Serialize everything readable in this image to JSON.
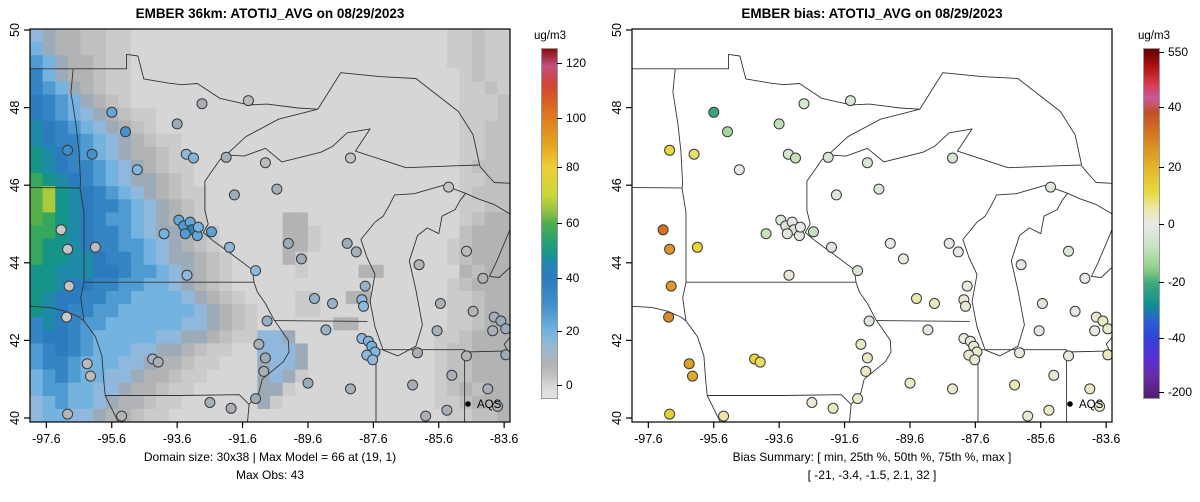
{
  "panels": [
    {
      "id": "model",
      "title": "EMBER 36km: ATOTIJ_AVG on 08/29/2023",
      "caption_lines": [
        "Domain size: 30x38 | Max Model = 66 at (19, 1)",
        "Max Obs: 43"
      ],
      "legend_label": "AQS",
      "colorbar": {
        "label": "ug/m3",
        "ticks": [
          [
            120,
            0.043
          ],
          [
            100,
            0.2
          ],
          [
            80,
            0.34
          ],
          [
            60,
            0.5
          ],
          [
            40,
            0.66
          ],
          [
            20,
            0.81
          ],
          [
            0,
            0.965
          ]
        ]
      },
      "x_tick_labels": [
        "-97.6",
        "-95.6",
        "-93.6",
        "-91.6",
        "-89.6",
        "-87.6",
        "-85.6",
        "-83.6"
      ],
      "y_tick_labels": [
        "50",
        "48",
        "46",
        "44",
        "42",
        "40"
      ]
    },
    {
      "id": "bias",
      "title": "EMBER bias: ATOTIJ_AVG on 08/29/2023",
      "caption_lines": [
        "Bias Summary: [ min, 25th %, 50th %, 75th %, max ]",
        "[ -21,  -3.4,  -1.5,  2.1,  32 ]"
      ],
      "legend_label": "AQS",
      "colorbar": {
        "label": "ug/m3",
        "ticks": [
          [
            550,
            0.012
          ],
          [
            40,
            0.17
          ],
          [
            20,
            0.34
          ],
          [
            0,
            0.505
          ],
          [
            -20,
            0.67
          ],
          [
            -40,
            0.83
          ],
          [
            -200,
            0.985
          ]
        ]
      },
      "x_tick_labels": [
        "-97.6",
        "-95.6",
        "-93.6",
        "-91.6",
        "-89.6",
        "-87.6",
        "-85.6",
        "-83.6"
      ],
      "y_tick_labels": [
        "50",
        "48",
        "46",
        "44",
        "42",
        "40"
      ]
    }
  ],
  "chart_data": {
    "type": [
      "heatmap",
      "scatter"
    ],
    "x_ticks": [
      -97.6,
      -95.6,
      -93.6,
      -91.6,
      -89.6,
      -87.6,
      -85.6,
      -83.6
    ],
    "y_ticks": [
      50,
      48,
      46,
      44,
      42,
      40
    ],
    "lon_range": [
      -98.1,
      -83.4
    ],
    "lat_range": [
      39.9,
      50.1
    ],
    "units": "ug/m3",
    "summary": {
      "domain_size": "30x38",
      "max_model": 66,
      "max_model_at": "(19, 1)",
      "max_obs": 43,
      "bias_min": -21,
      "bias_p25": -3.4,
      "bias_p50": -1.5,
      "bias_p75": 2.1,
      "bias_max": 32
    },
    "model_grid": {
      "nrows": 30,
      "ncols": 38,
      "char_values": {
        ".": 1,
        ",": 4,
        "-": 7,
        "=": 10,
        "g": 14,
        "p": 18,
        "l": 22,
        "b": 28,
        "B": 34,
        "T": 40,
        "d": 46,
        "t": 52,
        "G": 58,
        "e": 63,
        "y": 68
      },
      "rows": [
        "pg==--,,.........................,,-,,",
        "lg==--,,.........................,,-,,",
        "blg==-,,.........................,,-,,",
        "Blg==-,,..........................,-,,",
        "Bblg=-,,..........................,,-,",
        "TBblg=-,..........................,,,-",
        "TBblpg=-,,........................,,,-",
        "dTBblpg=-,........................,,--",
        "dTBBblpg=-,,......................,,--",
        "tdTBblpg==-,......................,,--",
        "tdTBBblpg=-,,.....................,---",
        "GtdTBblpgg=-,.....................,,--",
        "eytdTBblpg=-,,....................,---",
        "eytdTBBblpg=-,....................,,--",
        "eGtdTBbblpg=-,......==............,-==",
        "GGtdTBBblpgg=-,.....==,...........-===",
        "GttdTBBbblpg=-,.....==,..........,-===",
        "GttddTBBblpgg=-,....=,...........,-===",
        "ttdddTTBbblpg=-,.....,....==......=-==",
        "ttdTTBBbbllpg=-,.................,-===",
        "tdTTBBbbllllpg=-,....,,..==......,,-==",
        "tdTBBbbllllllpg=-,...,,..........,,-==",
        "BdTBbbllllllppg=-,......==.......,,-==",
        "BTTBblllllppgg=-,,ppg...........,,-===",
        "bBTBblllppgg=-,,..pppg..........,--===",
        "bBBblllppg==-,,...gppg..........,--===",
        "lbBbllppg==-,,....gpg,..........,--===",
        "lbbllppg==-,,.....gg,...........,-=-==",
        "plbllpg==-,,......g,............,,-===",
        "pllppg==-,,......................,,--=="
      ]
    },
    "stations": {
      "columns": [
        "lon",
        "lat",
        "obs_ugm3",
        "bias_ugm3"
      ],
      "rows": [
        [
          -96.95,
          46.9,
          32,
          12
        ],
        [
          -96.2,
          46.8,
          30,
          9
        ],
        [
          -95.6,
          47.88,
          25,
          -21
        ],
        [
          -95.18,
          47.38,
          30,
          -12
        ],
        [
          -93.6,
          47.58,
          14,
          -9
        ],
        [
          -92.84,
          48.1,
          12,
          -4
        ],
        [
          -91.42,
          48.18,
          8,
          -4
        ],
        [
          -94.82,
          46.4,
          20,
          0
        ],
        [
          -93.32,
          46.8,
          18,
          -5
        ],
        [
          -93.1,
          46.7,
          20,
          -8
        ],
        [
          -92.1,
          46.72,
          12,
          -4
        ],
        [
          -90.9,
          46.58,
          8,
          -3
        ],
        [
          -88.3,
          46.7,
          6,
          -4
        ],
        [
          -85.3,
          45.95,
          6,
          -3
        ],
        [
          -93.55,
          45.1,
          25,
          -3
        ],
        [
          -93.4,
          44.95,
          28,
          -4
        ],
        [
          -93.2,
          45.05,
          25,
          -1
        ],
        [
          -93.15,
          44.85,
          43,
          -4
        ],
        [
          -93.35,
          44.75,
          28,
          -2
        ],
        [
          -92.98,
          44.7,
          25,
          -1
        ],
        [
          -92.95,
          44.92,
          22,
          0
        ],
        [
          -94.0,
          44.75,
          22,
          -8
        ],
        [
          -97.15,
          44.85,
          5,
          32
        ],
        [
          -96.95,
          44.35,
          6,
          26
        ],
        [
          -96.1,
          44.4,
          8,
          12
        ],
        [
          -96.9,
          43.4,
          6,
          25
        ],
        [
          -96.98,
          42.6,
          5,
          28
        ],
        [
          -96.35,
          41.4,
          8,
          24
        ],
        [
          -96.25,
          41.08,
          8,
          22
        ],
        [
          -96.95,
          40.1,
          10,
          14
        ],
        [
          -95.3,
          40.05,
          10,
          6
        ],
        [
          -94.35,
          41.52,
          12,
          12
        ],
        [
          -94.18,
          41.44,
          12,
          10
        ],
        [
          -91.1,
          41.9,
          12,
          4
        ],
        [
          -90.9,
          41.55,
          14,
          4
        ],
        [
          -90.95,
          41.2,
          12,
          4
        ],
        [
          -90.85,
          42.5,
          16,
          -3
        ],
        [
          -93.3,
          43.68,
          18,
          2
        ],
        [
          -92.55,
          44.8,
          26,
          -8
        ],
        [
          -92.0,
          44.4,
          18,
          -2
        ],
        [
          -91.85,
          45.75,
          14,
          -2
        ],
        [
          -90.55,
          45.9,
          12,
          -3
        ],
        [
          -90.2,
          44.5,
          14,
          -1
        ],
        [
          -89.8,
          44.1,
          14,
          1
        ],
        [
          -91.2,
          43.8,
          18,
          -4
        ],
        [
          -89.4,
          43.08,
          16,
          5
        ],
        [
          -88.85,
          42.95,
          16,
          4
        ],
        [
          -87.95,
          43.05,
          18,
          2
        ],
        [
          -87.9,
          42.88,
          18,
          2
        ],
        [
          -87.85,
          43.4,
          16,
          1
        ],
        [
          -88.4,
          44.5,
          14,
          -1
        ],
        [
          -88.12,
          44.28,
          12,
          -1
        ],
        [
          -84.75,
          44.3,
          8,
          -3
        ],
        [
          -86.2,
          43.95,
          10,
          -2
        ],
        [
          -85.55,
          42.95,
          12,
          -3
        ],
        [
          -85.65,
          42.25,
          12,
          -2
        ],
        [
          -84.55,
          42.75,
          10,
          -2
        ],
        [
          -84.25,
          43.6,
          10,
          -1
        ],
        [
          -83.9,
          42.6,
          12,
          2
        ],
        [
          -83.7,
          42.5,
          14,
          4
        ],
        [
          -83.55,
          42.3,
          14,
          3
        ],
        [
          -83.95,
          42.25,
          12,
          1
        ],
        [
          -83.55,
          41.63,
          14,
          4
        ],
        [
          -89.05,
          42.27,
          16,
          1
        ],
        [
          -87.95,
          42.05,
          18,
          1
        ],
        [
          -87.75,
          41.98,
          20,
          1
        ],
        [
          -87.65,
          41.85,
          22,
          2
        ],
        [
          -87.55,
          41.7,
          20,
          3
        ],
        [
          -87.8,
          41.62,
          18,
          2
        ],
        [
          -87.62,
          41.5,
          18,
          2
        ],
        [
          -89.6,
          40.9,
          14,
          4
        ],
        [
          -88.3,
          40.75,
          12,
          3
        ],
        [
          -92.6,
          40.4,
          12,
          2
        ],
        [
          -91.95,
          40.25,
          12,
          4
        ],
        [
          -91.2,
          40.5,
          14,
          3
        ],
        [
          -86.25,
          41.68,
          12,
          1
        ],
        [
          -85.2,
          41.1,
          12,
          2
        ],
        [
          -86.4,
          40.85,
          12,
          5
        ],
        [
          -85.35,
          40.2,
          12,
          3
        ],
        [
          -84.1,
          40.75,
          12,
          4
        ],
        [
          -84.75,
          41.6,
          10,
          1
        ],
        [
          -83.8,
          40.3,
          12,
          2
        ],
        [
          -86.0,
          40.05,
          12,
          2
        ]
      ]
    },
    "scales": {
      "model_anchors": [
        [
          0,
          "#d9d9d9"
        ],
        [
          5,
          "#c8c8c8"
        ],
        [
          10,
          "#b2b3b5"
        ],
        [
          14,
          "#9dabb8"
        ],
        [
          18,
          "#8fb8dc"
        ],
        [
          22,
          "#74b3e0"
        ],
        [
          28,
          "#4f9ad0"
        ],
        [
          34,
          "#3585c4"
        ],
        [
          40,
          "#2b7cbf"
        ],
        [
          46,
          "#1f89a8"
        ],
        [
          52,
          "#159488"
        ],
        [
          58,
          "#35a75f"
        ],
        [
          63,
          "#55b04b"
        ],
        [
          68,
          "#a9ca3c"
        ],
        [
          80,
          "#f2df3e"
        ],
        [
          100,
          "#e0821f"
        ],
        [
          120,
          "#c2527e"
        ],
        [
          130,
          "#8b0d0d"
        ]
      ],
      "model_bar_stops": [
        [
          0.0,
          "#8b0d0d"
        ],
        [
          0.05,
          "#c2527e"
        ],
        [
          0.1,
          "#cf4535"
        ],
        [
          0.15,
          "#d85f22"
        ],
        [
          0.2,
          "#dd7d1f"
        ],
        [
          0.28,
          "#e5a723"
        ],
        [
          0.34,
          "#eecf35"
        ],
        [
          0.42,
          "#c9d63c"
        ],
        [
          0.47,
          "#8abf45"
        ],
        [
          0.5,
          "#4fae4e"
        ],
        [
          0.55,
          "#27a173"
        ],
        [
          0.585,
          "#17988a"
        ],
        [
          0.62,
          "#2184b4"
        ],
        [
          0.66,
          "#2b7cbf"
        ],
        [
          0.74,
          "#4592cc"
        ],
        [
          0.81,
          "#74b3e0"
        ],
        [
          0.855,
          "#98b9cf"
        ],
        [
          0.9,
          "#aeb3b7"
        ],
        [
          0.93,
          "#bebebe"
        ],
        [
          0.965,
          "#d6d6d6"
        ],
        [
          1.0,
          "#e4e4e4"
        ]
      ],
      "bias_value_fracs": [
        [
          -200,
          0.985
        ],
        [
          -40,
          0.83
        ],
        [
          -20,
          0.67
        ],
        [
          0,
          0.505
        ],
        [
          20,
          0.34
        ],
        [
          40,
          0.17
        ],
        [
          550,
          0.012
        ]
      ],
      "bias_bar_stops": [
        [
          0.0,
          "#600000"
        ],
        [
          0.05,
          "#b01010"
        ],
        [
          0.1,
          "#d63a4e"
        ],
        [
          0.14,
          "#c75b96"
        ],
        [
          0.18,
          "#c24e2a"
        ],
        [
          0.24,
          "#d4731f"
        ],
        [
          0.3,
          "#dd9c28"
        ],
        [
          0.34,
          "#e2b62c"
        ],
        [
          0.41,
          "#e8d93c"
        ],
        [
          0.46,
          "#ebe7b0"
        ],
        [
          0.505,
          "#e9e9e9"
        ],
        [
          0.57,
          "#c6e2be"
        ],
        [
          0.63,
          "#8ecf88"
        ],
        [
          0.67,
          "#3fa87c"
        ],
        [
          0.73,
          "#129190"
        ],
        [
          0.78,
          "#2a5fd4"
        ],
        [
          0.83,
          "#3342d8"
        ],
        [
          0.89,
          "#5c2ed2"
        ],
        [
          0.94,
          "#682ba6"
        ],
        [
          0.985,
          "#552180"
        ],
        [
          1.0,
          "#4c1d73"
        ]
      ]
    }
  }
}
